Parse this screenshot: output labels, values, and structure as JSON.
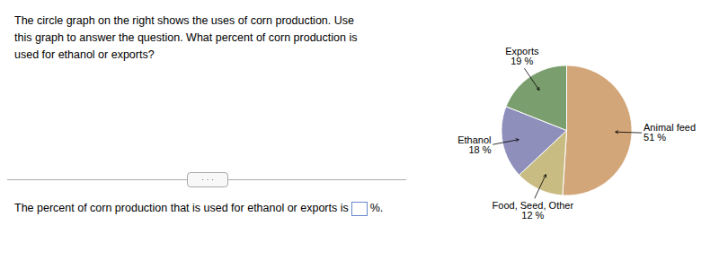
{
  "chart_data": {
    "type": "pie",
    "title": "The circle graph on the right shows the uses of corn production. Use\nthis graph to answer the question. What percent of corn production is\nused for ethanol or exports?",
    "categories": [
      "Animal feed",
      "Food, Seed, Other",
      "Ethanol",
      "Exports"
    ],
    "values": [
      51,
      12,
      18,
      19
    ],
    "value_labels": [
      "51 %",
      "12 %",
      "18 %",
      "19 %"
    ],
    "colors": [
      "#D2A679",
      "#C8BC82",
      "#8E8FBB",
      "#7A9E6E"
    ],
    "data_labels": true,
    "annotations": [
      "The percent of corn production that is used for ethanol or exports is",
      "%.",
      "· · ·"
    ]
  }
}
